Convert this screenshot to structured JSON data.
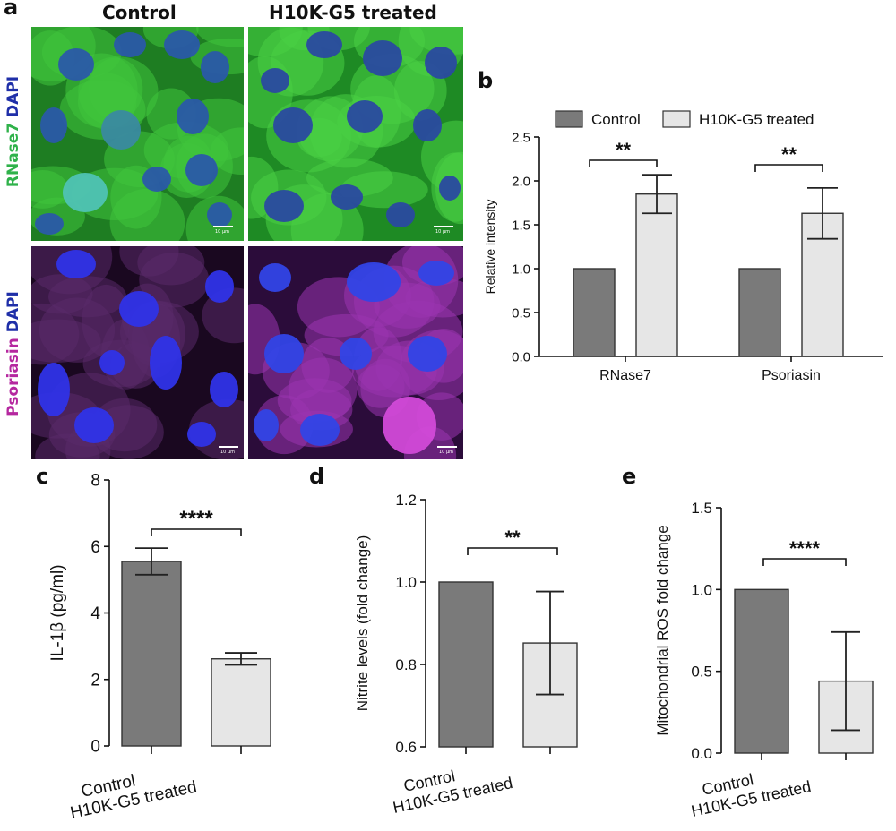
{
  "panel_letters": {
    "a": "a",
    "b": "b",
    "c": "c",
    "d": "d",
    "e": "e"
  },
  "micrograph_panel": {
    "column_titles": [
      "Control",
      "H10K-G5 treated"
    ],
    "row1_label_parts": [
      {
        "text": "RNase7 ",
        "color": "#2fb24a"
      },
      {
        "text": "DAPI",
        "color": "#1f2fa8"
      }
    ],
    "row2_label_parts": [
      {
        "text": "Psoriasin ",
        "color": "#b5279f"
      },
      {
        "text": "DAPI",
        "color": "#1f2fa8"
      }
    ],
    "scale_bar_text": "10 μm",
    "colors": {
      "rnase_bg": "#29b52f",
      "nucleus_blue": "#2436c8",
      "psoriasin_bg": "#3a1a4a",
      "psoriasin_bright": "#c43ad0"
    }
  },
  "colors": {
    "control_bar": "#7a7a7a",
    "treated_bar": "#e6e6e6",
    "axis": "#111111"
  },
  "chart_data": [
    {
      "id": "b",
      "type": "bar",
      "categories": [
        "RNase7",
        "Psoriasin"
      ],
      "series": [
        {
          "name": "Control",
          "values": [
            1.0,
            1.0
          ],
          "errors": [
            0,
            0
          ]
        },
        {
          "name": "H10K-G5 treated",
          "values": [
            1.85,
            1.63
          ],
          "errors": [
            0.22,
            0.29
          ]
        }
      ],
      "ylabel": "Relative intensity",
      "ylim": [
        0,
        2.5
      ],
      "yticks": [
        "0.0",
        "0.5",
        "1.0",
        "1.5",
        "2.0",
        "2.5"
      ],
      "significance": [
        "**",
        "**"
      ],
      "legend": "top",
      "grid": false
    },
    {
      "id": "c",
      "type": "bar",
      "categories": [
        "Control",
        "H10K-G5 treated"
      ],
      "values": [
        5.55,
        2.62
      ],
      "errors": [
        0.4,
        0.18
      ],
      "ylabel": "IL-1β (pg/ml)",
      "ylim": [
        0,
        8
      ],
      "yticks": [
        "0",
        "2",
        "4",
        "6",
        "8"
      ],
      "significance": "****",
      "grid": false
    },
    {
      "id": "d",
      "type": "bar",
      "categories": [
        "Control",
        "H10K-G5 treated"
      ],
      "values": [
        1.0,
        0.852
      ],
      "errors": [
        0,
        0.125
      ],
      "ylabel": "Nitrite levels (fold change)",
      "ylim": [
        0.6,
        1.2
      ],
      "yticks": [
        "0.6",
        "0.8",
        "1.0",
        "1.2"
      ],
      "significance": "**",
      "grid": false
    },
    {
      "id": "e",
      "type": "bar",
      "categories": [
        "Control",
        "H10K-G5 treated"
      ],
      "values": [
        1.0,
        0.44
      ],
      "errors": [
        0,
        0.3
      ],
      "ylabel": "Mitochondrial ROS fold change",
      "ylim": [
        0,
        1.5
      ],
      "yticks": [
        "0.0",
        "0.5",
        "1.0",
        "1.5"
      ],
      "significance": "****",
      "grid": false
    }
  ]
}
